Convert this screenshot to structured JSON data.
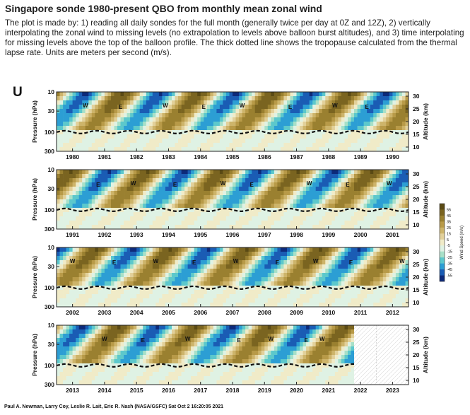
{
  "page": {
    "title": "Singapore sonde 1980-present QBO from monthly mean zonal wind",
    "description": "The plot is made by: 1) reading all daily sondes for the full month (generally twice per day at 0Z and 12Z), 2) vertically interpolating the zonal wind to missing levels (no extrapolation to levels above balloon burst altitudes), and 3) time interpolating for missing levels above the top of the balloon profile. The thick dotted line shows the tropopause calculated from the thermal lapse rate. Units are meters per second (m/s)."
  },
  "chart_data": {
    "type": "heatmap",
    "panel_label": "U",
    "ylabel": "Pressure (hPa)",
    "ylabel_right": "Altitude (km)",
    "pressure_ticks": [
      "10",
      "30",
      "100",
      "300"
    ],
    "altitude_ticks": [
      "30",
      "25",
      "20",
      "15",
      "10"
    ],
    "colorbar": {
      "label": "Wind Speed (m/s)",
      "ticks": [
        "55",
        "45",
        "35",
        "25",
        "15",
        "5",
        "-5",
        "-15",
        "-25",
        "-35",
        "-45",
        "-55"
      ],
      "colors": [
        "#5a4a14",
        "#7a6420",
        "#9a8030",
        "#b89a48",
        "#cdb46a",
        "#e2d09a",
        "#f0ebc8",
        "#dff2e4",
        "#a8e0c8",
        "#5cc8cc",
        "#2c9ed4",
        "#1a5cb4",
        "#0d2a7a"
      ]
    },
    "contour_labels": {
      "westerly": "W",
      "easterly": "E"
    },
    "panels": [
      {
        "years": [
          "1980",
          "1981",
          "1982",
          "1983",
          "1984",
          "1985",
          "1986",
          "1987",
          "1988",
          "1989",
          "1990"
        ],
        "w_labels": [
          1980.4,
          1982.9,
          1985.3,
          1988.2
        ],
        "e_labels": [
          1981.5,
          1984.1,
          1986.8,
          1989.2
        ]
      },
      {
        "years": [
          "1991",
          "1992",
          "1993",
          "1994",
          "1995",
          "1996",
          "1997",
          "1998",
          "1999",
          "2000",
          "2001"
        ],
        "w_labels": [
          1992.9,
          1995.7,
          1998.4,
          2000.9
        ],
        "e_labels": [
          1991.8,
          1994.2,
          1996.6,
          1999.6
        ]
      },
      {
        "years": [
          "2002",
          "2003",
          "2004",
          "2005",
          "2006",
          "2007",
          "2008",
          "2009",
          "2010",
          "2011",
          "2012"
        ],
        "w_labels": [
          2002.0,
          2004.6,
          2007.1,
          2009.6,
          2012.3
        ],
        "e_labels": [
          2003.3,
          2005.8,
          2008.4,
          2010.7
        ]
      },
      {
        "years": [
          "2013",
          "2014",
          "2015",
          "2016",
          "2017",
          "2018",
          "2019",
          "2020",
          "2021",
          "2022",
          "2023"
        ],
        "data_end": 2021.8,
        "w_labels": [
          2014.0,
          2016.6,
          2019.2,
          2020.8
        ],
        "e_labels": [
          2015.2,
          2018.2,
          2020.3
        ]
      }
    ]
  },
  "credit": "Paul A. Newman, Larry Coy, Leslie R. Lait, Eric R. Nash (NASA/GSFC) Sat Oct  2 16:20:05 2021"
}
